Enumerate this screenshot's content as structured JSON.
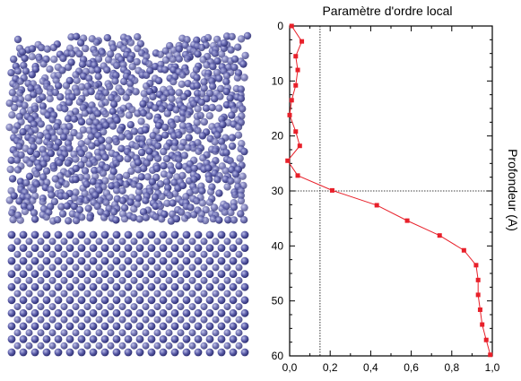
{
  "chart_data": {
    "type": "line",
    "title": "Paramètre d'ordre local",
    "xlabel": "",
    "ylabel": "Profondeur (A)",
    "xlim": [
      0,
      1
    ],
    "ylim": [
      60,
      0
    ],
    "y_inverted": true,
    "x_axis_position": "bottom",
    "y_axis_label_side": "right",
    "x_ticks": [
      "0,0",
      "0,2",
      "0,4",
      "0,6",
      "0,8",
      "1,0"
    ],
    "y_ticks": [
      "0",
      "10",
      "20",
      "30",
      "40",
      "50",
      "60"
    ],
    "reference_lines": {
      "x": 0.15,
      "y": 30
    },
    "grid": false,
    "series": [
      {
        "color": "#e8202a",
        "marker": "square",
        "x": [
          0.01,
          0.06,
          0.03,
          0.04,
          0.03,
          0.01,
          0.0,
          0.03,
          0.05,
          -0.01,
          0.04,
          0.21,
          0.43,
          0.58,
          0.74,
          0.86,
          0.92,
          0.93,
          0.93,
          0.94,
          0.95,
          0.97,
          0.99
        ],
        "y": [
          0,
          2.8,
          5.5,
          8,
          10.8,
          13.5,
          16.2,
          19.2,
          21.8,
          24.5,
          27.2,
          29.9,
          32.6,
          35.4,
          38.1,
          40.8,
          43.5,
          46.2,
          48.9,
          51.6,
          54.3,
          57.1,
          59.8
        ]
      }
    ]
  },
  "illustration": {
    "subject": "atomic-structure-cross-section",
    "sphere_color": "#5a5ca8",
    "lattice_rows": 10,
    "lattice_cols": 21
  }
}
